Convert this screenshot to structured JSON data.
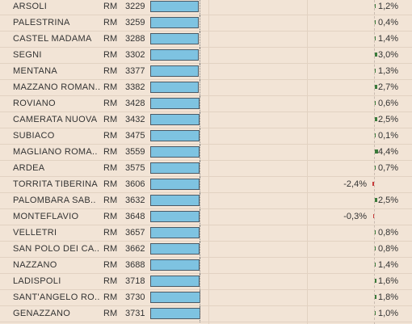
{
  "rows": [
    {
      "name": "ARSOLI",
      "prov": "RM",
      "code": "3229",
      "pct": "1,2%",
      "value": 1.2
    },
    {
      "name": "PALESTRINA",
      "prov": "RM",
      "code": "3259",
      "pct": "0,4%",
      "value": 0.4
    },
    {
      "name": "CASTEL MADAMA",
      "prov": "RM",
      "code": "3288",
      "pct": "1,4%",
      "value": 1.4
    },
    {
      "name": "SEGNI",
      "prov": "RM",
      "code": "3302",
      "pct": "3,0%",
      "value": 3.0
    },
    {
      "name": "MENTANA",
      "prov": "RM",
      "code": "3377",
      "pct": "1,3%",
      "value": 1.3
    },
    {
      "name": "MAZZANO ROMAN..",
      "prov": "RM",
      "code": "3382",
      "pct": "2,7%",
      "value": 2.7
    },
    {
      "name": "ROVIANO",
      "prov": "RM",
      "code": "3428",
      "pct": "0,6%",
      "value": 0.6
    },
    {
      "name": "CAMERATA NUOVA",
      "prov": "RM",
      "code": "3432",
      "pct": "2,5%",
      "value": 2.5
    },
    {
      "name": "SUBIACO",
      "prov": "RM",
      "code": "3475",
      "pct": "0,1%",
      "value": 0.1
    },
    {
      "name": "MAGLIANO ROMA..",
      "prov": "RM",
      "code": "3559",
      "pct": "4,4%",
      "value": 4.4
    },
    {
      "name": "ARDEA",
      "prov": "RM",
      "code": "3575",
      "pct": "0,7%",
      "value": 0.7
    },
    {
      "name": "TORRITA TIBERINA",
      "prov": "RM",
      "code": "3606",
      "pct": "-2,4%",
      "value": -2.4
    },
    {
      "name": "PALOMBARA SAB..",
      "prov": "RM",
      "code": "3632",
      "pct": "2,5%",
      "value": 2.5
    },
    {
      "name": "MONTEFLAVIO",
      "prov": "RM",
      "code": "3648",
      "pct": "-0,3%",
      "value": -0.3
    },
    {
      "name": "VELLETRI",
      "prov": "RM",
      "code": "3657",
      "pct": "0,8%",
      "value": 0.8
    },
    {
      "name": "SAN POLO DEI CA..",
      "prov": "RM",
      "code": "3662",
      "pct": "0,8%",
      "value": 0.8
    },
    {
      "name": "NAZZANO",
      "prov": "RM",
      "code": "3688",
      "pct": "1,4%",
      "value": 1.4
    },
    {
      "name": "LADISPOLI",
      "prov": "RM",
      "code": "3718",
      "pct": "1,6%",
      "value": 1.6
    },
    {
      "name": "SANT'ANGELO RO..",
      "prov": "RM",
      "code": "3730",
      "pct": "1,8%",
      "value": 1.8
    },
    {
      "name": "GENAZZANO",
      "prov": "RM",
      "code": "3731",
      "pct": "1,0%",
      "value": 1.0
    }
  ],
  "colors": {
    "bar": "#7ec3e1",
    "positive": "#3a7a3a",
    "negative": "#c83a3a"
  }
}
